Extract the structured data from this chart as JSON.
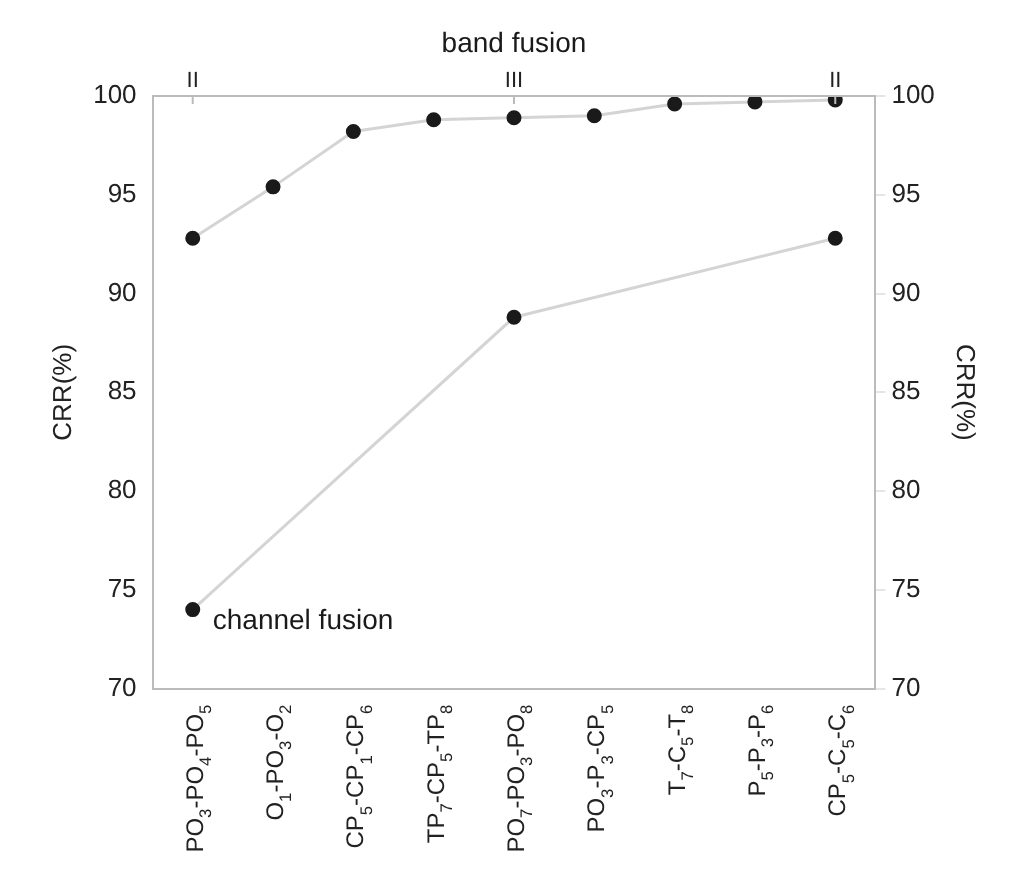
{
  "chart_data": {
    "type": "line",
    "categories": [
      "PO$_{3}$-PO$_{4}$-PO$_{5}$",
      "O$_{1}$-PO$_{3}$-O$_{2}$",
      "CP$_{5}$-CP$_{1}$-CP$_{6}$",
      "TP$_{7}$-CP$_{5}$-TP$_{8}$",
      "PO$_{7}$-PO$_{3}$-PO$_{8}$",
      "PO$_{3}$-P$_{3}$-CP$_{5}$",
      "T$_{7}$-C$_{5}$-T$_{8}$",
      "P$_{5}$-P$_{3}$-P$_{6}$",
      "CP$_{5}$-C$_{5}$-C$_{6}$"
    ],
    "series": [
      {
        "name": "band fusion",
        "color": "#1a1a1a",
        "values": [
          92.8,
          95.4,
          98.2,
          98.8,
          98.9,
          99.0,
          99.6,
          99.7,
          99.8
        ]
      },
      {
        "name": "channel fusion",
        "color": "#1a1a1a",
        "values": [
          74.0,
          null,
          null,
          null,
          88.8,
          null,
          null,
          null,
          92.8
        ]
      }
    ],
    "ylabel": "CRR(%)",
    "y2label": "CRR(%)",
    "ylim": [
      70,
      100
    ],
    "yticks": [
      70,
      75,
      80,
      85,
      90,
      95,
      100
    ],
    "y2lim": [
      70,
      100
    ],
    "y2ticks": [
      70,
      75,
      80,
      85,
      90,
      95,
      100
    ],
    "annotations": [
      "II",
      "III",
      "II"
    ],
    "marker": "circle",
    "grid": false,
    "legend": false
  }
}
